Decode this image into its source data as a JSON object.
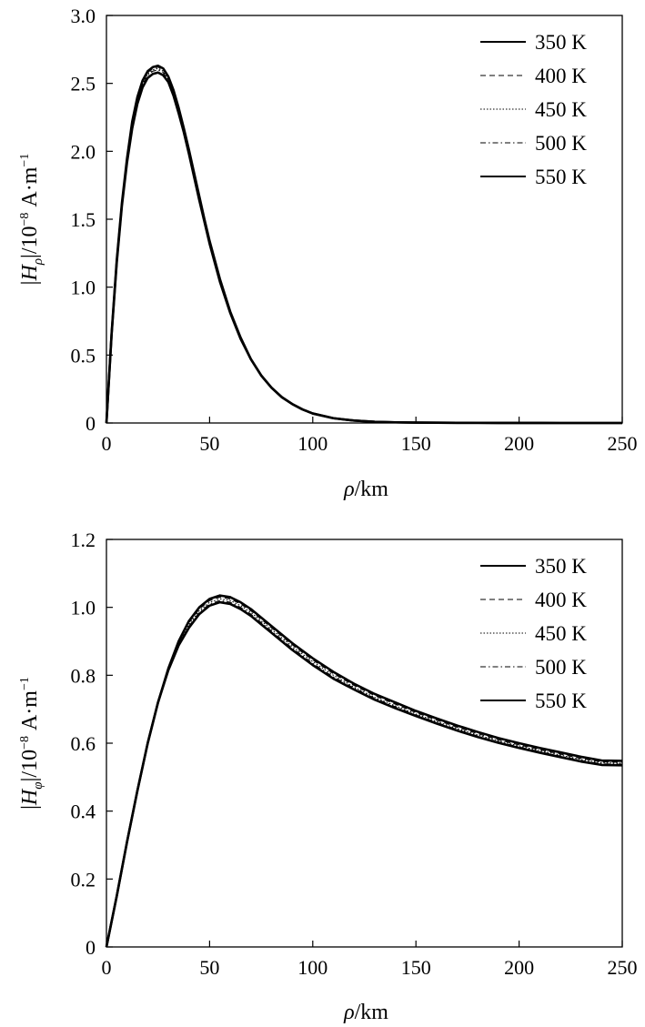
{
  "chart_data": [
    {
      "type": "line",
      "ylabel_parts": {
        "open": "|",
        "sym": "H",
        "sub": "ρ",
        "mid": "|/10",
        "exp": "−8",
        "unit": " A·m",
        "unit_exp": "−1"
      },
      "xlabel_parts": {
        "sym": "ρ",
        "unit": "/km"
      },
      "xlim": [
        0,
        250
      ],
      "ylim": [
        0,
        3.0
      ],
      "xticks": [
        0,
        50,
        100,
        150,
        200,
        250
      ],
      "yticks": [
        0,
        0.5,
        1.0,
        1.5,
        2.0,
        2.5,
        3.0
      ],
      "xtick_labels": [
        "0",
        "50",
        "100",
        "150",
        "200",
        "250"
      ],
      "ytick_labels": [
        "0",
        "0.5",
        "1.0",
        "1.5",
        "2.0",
        "2.5",
        "3.0"
      ],
      "grid": false,
      "legend_position": "top-right",
      "x": [
        0,
        2.5,
        5,
        7.5,
        10,
        12.5,
        15,
        17.5,
        20,
        22.5,
        25,
        27.5,
        30,
        32.5,
        35,
        37.5,
        40,
        42.5,
        45,
        47.5,
        50,
        55,
        60,
        65,
        70,
        75,
        80,
        85,
        90,
        95,
        100,
        110,
        120,
        130,
        140,
        150,
        160,
        170,
        180,
        190,
        200,
        210,
        220,
        230,
        240,
        250
      ],
      "series": [
        {
          "name": "350 K",
          "style": "solid-thick",
          "values": [
            0,
            0.66,
            1.2,
            1.62,
            1.95,
            2.22,
            2.4,
            2.52,
            2.59,
            2.62,
            2.63,
            2.61,
            2.55,
            2.45,
            2.32,
            2.17,
            2.01,
            1.84,
            1.67,
            1.5,
            1.34,
            1.06,
            0.82,
            0.63,
            0.47,
            0.35,
            0.26,
            0.19,
            0.14,
            0.1,
            0.07,
            0.035,
            0.018,
            0.009,
            0.005,
            0.003,
            0.002,
            0.001,
            0.0008,
            0.0005,
            0.0003,
            0.0002,
            0.0001,
            0.0001,
            0.0001,
            0.0001
          ]
        },
        {
          "name": "400 K",
          "style": "dashed",
          "values": [
            0,
            0.66,
            1.2,
            1.62,
            1.95,
            2.21,
            2.39,
            2.51,
            2.58,
            2.61,
            2.62,
            2.6,
            2.54,
            2.44,
            2.31,
            2.16,
            2.0,
            1.83,
            1.66,
            1.49,
            1.33,
            1.05,
            0.81,
            0.62,
            0.47,
            0.35,
            0.26,
            0.19,
            0.14,
            0.1,
            0.07,
            0.035,
            0.018,
            0.009,
            0.005,
            0.003,
            0.002,
            0.001,
            0.0008,
            0.0005,
            0.0003,
            0.0002,
            0.0001,
            0.0001,
            0.0001,
            0.0001
          ]
        },
        {
          "name": "450 K",
          "style": "dotted",
          "values": [
            0,
            0.66,
            1.19,
            1.61,
            1.94,
            2.2,
            2.38,
            2.5,
            2.57,
            2.6,
            2.61,
            2.59,
            2.53,
            2.43,
            2.3,
            2.15,
            1.99,
            1.82,
            1.65,
            1.49,
            1.33,
            1.05,
            0.81,
            0.62,
            0.47,
            0.35,
            0.26,
            0.19,
            0.14,
            0.1,
            0.07,
            0.035,
            0.018,
            0.009,
            0.005,
            0.003,
            0.002,
            0.001,
            0.0008,
            0.0005,
            0.0003,
            0.0002,
            0.0001,
            0.0001,
            0.0001,
            0.0001
          ]
        },
        {
          "name": "500 K",
          "style": "dashdot",
          "values": [
            0,
            0.65,
            1.19,
            1.61,
            1.93,
            2.19,
            2.37,
            2.49,
            2.56,
            2.59,
            2.6,
            2.58,
            2.52,
            2.42,
            2.29,
            2.15,
            1.99,
            1.82,
            1.65,
            1.48,
            1.32,
            1.05,
            0.81,
            0.62,
            0.47,
            0.35,
            0.26,
            0.19,
            0.14,
            0.1,
            0.07,
            0.035,
            0.018,
            0.009,
            0.005,
            0.003,
            0.002,
            0.001,
            0.0008,
            0.0005,
            0.0003,
            0.0002,
            0.0001,
            0.0001,
            0.0001,
            0.0001
          ]
        },
        {
          "name": "550 K",
          "style": "solid-thick",
          "values": [
            0,
            0.65,
            1.18,
            1.6,
            1.92,
            2.17,
            2.35,
            2.47,
            2.54,
            2.57,
            2.58,
            2.56,
            2.51,
            2.41,
            2.28,
            2.14,
            1.98,
            1.81,
            1.64,
            1.48,
            1.32,
            1.04,
            0.81,
            0.62,
            0.47,
            0.35,
            0.26,
            0.19,
            0.14,
            0.1,
            0.07,
            0.035,
            0.018,
            0.009,
            0.005,
            0.003,
            0.002,
            0.001,
            0.0008,
            0.0005,
            0.0003,
            0.0002,
            0.0001,
            0.0001,
            0.0001,
            0.0001
          ]
        }
      ]
    },
    {
      "type": "line",
      "ylabel_parts": {
        "open": "|",
        "sym": "H",
        "sub": "φ",
        "mid": "|/10",
        "exp": "−8",
        "unit": " A·m",
        "unit_exp": "−1"
      },
      "xlabel_parts": {
        "sym": "ρ",
        "unit": "/km"
      },
      "xlim": [
        0,
        250
      ],
      "ylim": [
        0,
        1.2
      ],
      "xticks": [
        0,
        50,
        100,
        150,
        200,
        250
      ],
      "yticks": [
        0,
        0.2,
        0.4,
        0.6,
        0.8,
        1.0,
        1.2
      ],
      "xtick_labels": [
        "0",
        "50",
        "100",
        "150",
        "200",
        "250"
      ],
      "ytick_labels": [
        "0",
        "0.2",
        "0.4",
        "0.6",
        "0.8",
        "1.0",
        "1.2"
      ],
      "grid": false,
      "legend_position": "top-right",
      "x": [
        0,
        5,
        10,
        15,
        20,
        25,
        30,
        35,
        40,
        45,
        50,
        55,
        60,
        65,
        70,
        75,
        80,
        90,
        100,
        110,
        120,
        130,
        140,
        150,
        160,
        170,
        180,
        190,
        200,
        210,
        220,
        230,
        240,
        250
      ],
      "series": [
        {
          "name": "350 K",
          "style": "solid-thick",
          "values": [
            0,
            0.15,
            0.31,
            0.46,
            0.6,
            0.72,
            0.82,
            0.9,
            0.96,
            1.0,
            1.025,
            1.035,
            1.03,
            1.015,
            0.995,
            0.97,
            0.945,
            0.895,
            0.85,
            0.81,
            0.775,
            0.745,
            0.72,
            0.695,
            0.673,
            0.652,
            0.633,
            0.615,
            0.6,
            0.586,
            0.573,
            0.56,
            0.549,
            0.548
          ]
        },
        {
          "name": "400 K",
          "style": "dashed",
          "values": [
            0,
            0.15,
            0.31,
            0.46,
            0.6,
            0.72,
            0.82,
            0.9,
            0.955,
            0.995,
            1.02,
            1.03,
            1.025,
            1.01,
            0.99,
            0.965,
            0.94,
            0.89,
            0.845,
            0.805,
            0.77,
            0.74,
            0.715,
            0.69,
            0.668,
            0.647,
            0.628,
            0.61,
            0.595,
            0.581,
            0.568,
            0.555,
            0.545,
            0.544
          ]
        },
        {
          "name": "450 K",
          "style": "dotted",
          "values": [
            0,
            0.15,
            0.31,
            0.46,
            0.6,
            0.72,
            0.82,
            0.895,
            0.95,
            0.99,
            1.015,
            1.025,
            1.02,
            1.005,
            0.985,
            0.96,
            0.935,
            0.885,
            0.84,
            0.8,
            0.765,
            0.735,
            0.71,
            0.686,
            0.664,
            0.643,
            0.624,
            0.607,
            0.592,
            0.578,
            0.565,
            0.552,
            0.542,
            0.541
          ]
        },
        {
          "name": "500 K",
          "style": "dashdot",
          "values": [
            0,
            0.15,
            0.31,
            0.46,
            0.6,
            0.72,
            0.815,
            0.89,
            0.945,
            0.985,
            1.01,
            1.02,
            1.015,
            1.0,
            0.98,
            0.955,
            0.93,
            0.88,
            0.835,
            0.795,
            0.762,
            0.732,
            0.707,
            0.683,
            0.661,
            0.64,
            0.621,
            0.604,
            0.589,
            0.575,
            0.562,
            0.549,
            0.539,
            0.538
          ]
        },
        {
          "name": "550 K",
          "style": "solid-thick",
          "values": [
            0,
            0.15,
            0.31,
            0.46,
            0.6,
            0.72,
            0.815,
            0.888,
            0.94,
            0.98,
            1.005,
            1.015,
            1.01,
            0.995,
            0.975,
            0.95,
            0.925,
            0.875,
            0.83,
            0.79,
            0.758,
            0.728,
            0.703,
            0.68,
            0.658,
            0.637,
            0.618,
            0.601,
            0.586,
            0.572,
            0.559,
            0.546,
            0.536,
            0.535
          ]
        }
      ]
    }
  ]
}
